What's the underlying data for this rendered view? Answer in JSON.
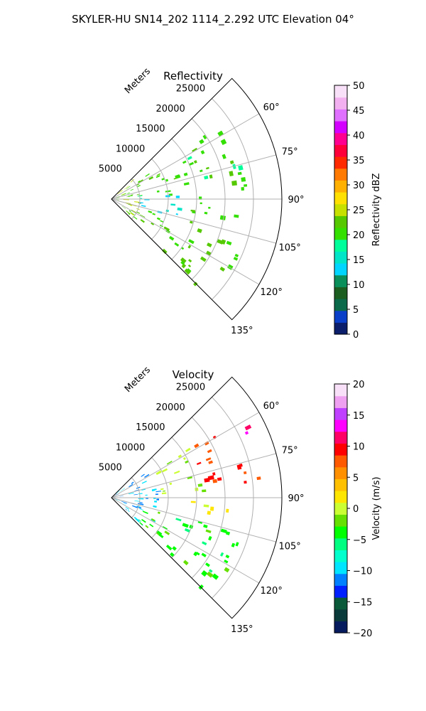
{
  "figure_title": "SKYLER-HU  SN14_202  1114_2.292 UTC Elevation 04°",
  "colors": {
    "reflectivity_stops": [
      "#0b1e6b",
      "#0a3fc9",
      "#0b6a4a",
      "#1b5e20",
      "#0a8f5a",
      "#00d5ff",
      "#00e5c8",
      "#00ff9a",
      "#33e000",
      "#55c800",
      "#c8e000",
      "#ffe000",
      "#ffb000",
      "#ff7a00",
      "#ff2a00",
      "#ff003a",
      "#ff0090",
      "#d400ff",
      "#e070ff",
      "#f2b0f0",
      "#f8e0f8"
    ],
    "velocity_stops": [
      "#061a5e",
      "#0b3a3a",
      "#0a5a3a",
      "#0020ff",
      "#0080ff",
      "#00e5ff",
      "#00ffcc",
      "#00ff80",
      "#00ff00",
      "#66e000",
      "#ccff33",
      "#ffe600",
      "#ffc000",
      "#ff9000",
      "#ff5a00",
      "#ff0000",
      "#ff0066",
      "#ff00ff",
      "#c040ff",
      "#f0a0f0",
      "#f8e0f8"
    ]
  },
  "chart_data": [
    {
      "type": "heatmap",
      "projection": "polar-sector",
      "title": "Reflectivity",
      "radial_axis_label": "Meters",
      "radial_ticks": [
        5000,
        10000,
        15000,
        20000,
        25000
      ],
      "radial_tick_labels": [
        "5000",
        "10000",
        "15000",
        "20000",
        "25000"
      ],
      "radial_range": [
        0,
        30000
      ],
      "azimuth_range_deg": [
        45,
        135
      ],
      "azimuth_ticks": [
        60,
        75,
        90,
        105,
        120,
        135
      ],
      "azimuth_tick_labels": [
        "60°",
        "75°",
        "90°",
        "105°",
        "120°",
        "135°"
      ],
      "grid": true,
      "colorbar": {
        "label": "Reflectivity dBZ",
        "range": [
          0,
          50
        ],
        "ticks": [
          0,
          5,
          10,
          15,
          20,
          25,
          30,
          35,
          40,
          45,
          50
        ],
        "tick_labels": [
          "0",
          "5",
          "10",
          "15",
          "20",
          "25",
          "30",
          "35",
          "40",
          "45",
          "50"
        ]
      },
      "field_summary": [
        {
          "azimuth_range_deg": [
            55,
            85
          ],
          "range_m": [
            0,
            24000
          ],
          "value": 20
        },
        {
          "azimuth_range_deg": [
            85,
            105
          ],
          "range_m": [
            4000,
            12000
          ],
          "value": 13
        },
        {
          "azimuth_range_deg": [
            88,
            100
          ],
          "range_m": [
            14000,
            22000
          ],
          "value": 20
        },
        {
          "azimuth_range_deg": [
            105,
            135
          ],
          "range_m": [
            3000,
            24000
          ],
          "value": 21
        },
        {
          "azimuth_range_deg": [
            45,
            135
          ],
          "range_m": [
            0,
            5000
          ],
          "value": 24
        }
      ]
    },
    {
      "type": "heatmap",
      "projection": "polar-sector",
      "title": "Velocity",
      "radial_axis_label": "Meters",
      "radial_ticks": [
        5000,
        10000,
        15000,
        20000,
        25000
      ],
      "radial_tick_labels": [
        "5000",
        "10000",
        "15000",
        "20000",
        "25000"
      ],
      "radial_range": [
        0,
        30000
      ],
      "azimuth_range_deg": [
        45,
        135
      ],
      "azimuth_ticks": [
        60,
        75,
        90,
        105,
        120,
        135
      ],
      "azimuth_tick_labels": [
        "60°",
        "75°",
        "90°",
        "105°",
        "120°",
        "135°"
      ],
      "grid": true,
      "colorbar": {
        "label": "Velocity (m/s)",
        "range": [
          -20,
          20
        ],
        "ticks": [
          -20,
          -15,
          -10,
          -5,
          0,
          5,
          10,
          15,
          20
        ],
        "tick_labels": [
          "−20",
          "−15",
          "−10",
          "−5",
          "0",
          "5",
          "10",
          "15",
          "20"
        ]
      },
      "field_summary": [
        {
          "azimuth_range_deg": [
            45,
            135
          ],
          "range_m": [
            0,
            8000
          ],
          "value": -11
        },
        {
          "azimuth_range_deg": [
            55,
            85
          ],
          "range_m": [
            8000,
            16000
          ],
          "value": -1
        },
        {
          "azimuth_range_deg": [
            55,
            85
          ],
          "range_m": [
            16000,
            26000
          ],
          "value": 9
        },
        {
          "azimuth_range_deg": [
            58,
            64
          ],
          "range_m": [
            22000,
            27000
          ],
          "value": 13
        },
        {
          "azimuth_range_deg": [
            88,
            100
          ],
          "range_m": [
            14000,
            22000
          ],
          "value": 2
        },
        {
          "azimuth_range_deg": [
            105,
            135
          ],
          "range_m": [
            6000,
            24000
          ],
          "value": -4
        }
      ]
    }
  ]
}
